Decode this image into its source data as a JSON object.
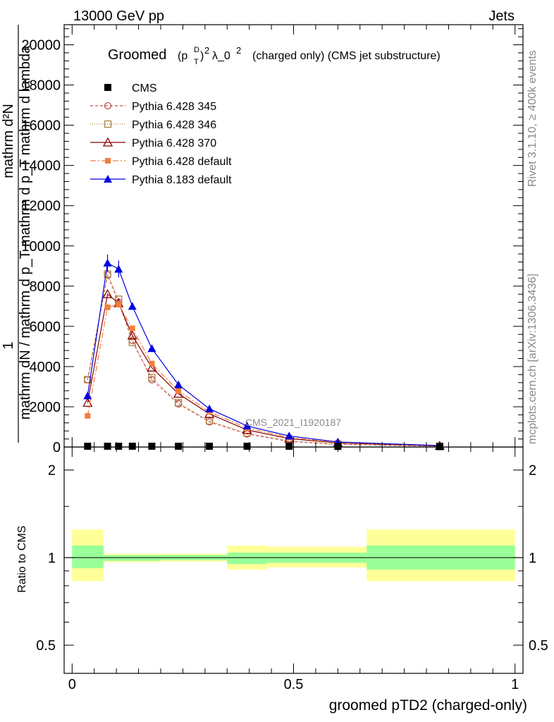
{
  "header": {
    "energy": "13000 GeV pp",
    "category": "Jets",
    "rivet": "Rivet 3.1.10, ≥ 400k events",
    "source": "mcplots.cern.ch [arXiv:1306.3436]",
    "watermark": "CMS_2021_I1920187"
  },
  "title": {
    "main": "Groomed",
    "p": "(p",
    "sup_d": "D",
    "sub_t": "T",
    "close": ")",
    "exp": "2",
    "lambda": "λ_0",
    "lambda_exp": "2",
    "suffix": "(charged only) (CMS jet substructure)"
  },
  "ylabel": {
    "one": "1",
    "top": "mathrm d²N",
    "bottom": "mathrm dN / mathrm d p_T mathrm d p_T mathrm d lambda"
  },
  "ratio_ylabel": "Ratio to CMS",
  "xlabel": "groomed pTD2 (charged-only)",
  "colors": {
    "cms": "#000000",
    "p345": "#c0504d",
    "p346": "#b08040",
    "p370": "#8b0000",
    "pdefault": "#f07f3c",
    "p8": "#0000e0",
    "band_outer": "#ffff99",
    "band_inner": "#99ff99"
  },
  "chart_data": {
    "type": "line",
    "title": "Groomed (pT^D)^2 λ_0^2 (charged only) (CMS jet substructure)",
    "xlabel": "groomed pTD2 (charged-only)",
    "xlim": [
      0,
      1
    ],
    "main_ylim": [
      0,
      21000
    ],
    "main_yticks": [
      "0",
      "2000",
      "4000",
      "6000",
      "8000",
      "10000",
      "12000",
      "14000",
      "16000",
      "18000",
      "20000"
    ],
    "main_ytick_values": [
      0,
      2000,
      4000,
      6000,
      8000,
      10000,
      12000,
      14000,
      16000,
      18000,
      20000
    ],
    "ratio_ylim_log": [
      0.4,
      2.4
    ],
    "ratio_yticks": [
      "0.5",
      "1",
      "2"
    ],
    "ratio_ytick_values": [
      0.5,
      1,
      2
    ],
    "xticks": [
      "0",
      "0.5",
      "1"
    ],
    "xtick_values": [
      0,
      0.5,
      1
    ],
    "bins": [
      0.0,
      0.071,
      0.091,
      0.118,
      0.154,
      0.2,
      0.26,
      0.35,
      0.44,
      0.53,
      0.665,
      1.0
    ],
    "x": [
      0.035,
      0.08,
      0.105,
      0.136,
      0.18,
      0.24,
      0.31,
      0.395,
      0.49,
      0.6,
      0.83
    ],
    "series": [
      {
        "name": "CMS",
        "marker": "square-filled",
        "values": [
          40,
          40,
          40,
          40,
          40,
          40,
          40,
          40,
          40,
          30,
          20
        ]
      },
      {
        "name": "Pythia 6.428 345",
        "marker": "circle-open",
        "dash": "4,3",
        "values": [
          3350,
          8550,
          7200,
          5300,
          3350,
          2150,
          1250,
          650,
          280,
          130,
          40
        ]
      },
      {
        "name": "Pythia 6.428 346",
        "marker": "square-open",
        "dash": "1,2",
        "values": [
          3350,
          8600,
          7350,
          5200,
          3450,
          2200,
          1300,
          700,
          300,
          140,
          45
        ]
      },
      {
        "name": "Pythia 6.428 370",
        "marker": "triangle-open",
        "dash": "",
        "values": [
          2200,
          7600,
          7150,
          5550,
          3950,
          2650,
          1650,
          850,
          420,
          200,
          55
        ]
      },
      {
        "name": "Pythia 6.428 default",
        "marker": "square-filled-small",
        "dash": "8,3,2,3",
        "values": [
          1550,
          6950,
          7100,
          5900,
          4150,
          2800,
          1750,
          950,
          480,
          220,
          60
        ]
      },
      {
        "name": "Pythia 8.183 default",
        "marker": "triangle-filled",
        "dash": "",
        "values": [
          2550,
          9150,
          8850,
          7000,
          4900,
          3100,
          1900,
          1050,
          550,
          250,
          70
        ]
      }
    ],
    "ratio_bands": [
      {
        "x0": 0.0,
        "x1": 0.071,
        "inner_lo": 0.92,
        "inner_hi": 1.1,
        "outer_lo": 0.83,
        "outer_hi": 1.25
      },
      {
        "x0": 0.071,
        "x1": 0.2,
        "inner_lo": 0.975,
        "inner_hi": 1.02,
        "outer_lo": 0.965,
        "outer_hi": 1.03
      },
      {
        "x0": 0.2,
        "x1": 0.35,
        "inner_lo": 0.98,
        "inner_hi": 1.02,
        "outer_lo": 0.97,
        "outer_hi": 1.03
      },
      {
        "x0": 0.35,
        "x1": 0.44,
        "inner_lo": 0.95,
        "inner_hi": 1.04,
        "outer_lo": 0.91,
        "outer_hi": 1.1
      },
      {
        "x0": 0.44,
        "x1": 0.665,
        "inner_lo": 0.96,
        "inner_hi": 1.04,
        "outer_lo": 0.925,
        "outer_hi": 1.09
      },
      {
        "x0": 0.665,
        "x1": 1.0,
        "inner_lo": 0.91,
        "inner_hi": 1.1,
        "outer_lo": 0.83,
        "outer_hi": 1.25
      }
    ]
  }
}
